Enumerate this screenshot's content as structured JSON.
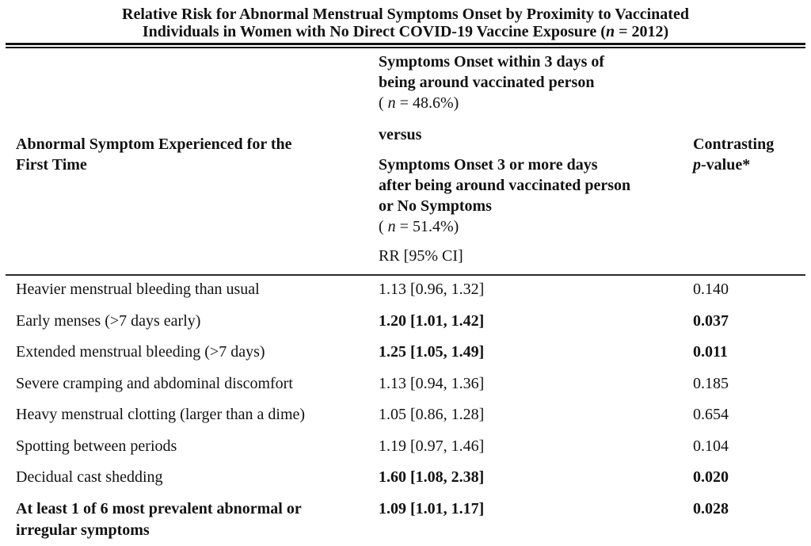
{
  "table": {
    "title": {
      "line1": "Relative Risk for Abnormal Menstrual Symptoms Onset by Proximity to Vaccinated",
      "line2_pre": "Individuals in Women with No Direct COVID-19 Vaccine Exposure (",
      "line2_var": "n",
      "line2_post": " = 2012)"
    },
    "header": {
      "symptom_col_lines": [
        "Abnormal Symptom Experienced for the",
        "First Time"
      ],
      "comparison_col": {
        "group1_lines": [
          "Symptoms Onset within 3 days of",
          "being around vaccinated person"
        ],
        "group1_n_pre": "( ",
        "group1_n_var": "n",
        "group1_n_post": " = 48.6%)",
        "versus": "versus",
        "group2_lines": [
          "Symptoms Onset 3 or more days",
          "after being around vaccinated person",
          "or No Symptoms"
        ],
        "group2_n_pre": "( ",
        "group2_n_var": "n",
        "group2_n_post": " = 51.4%)",
        "measure_label": "RR [95% CI]"
      },
      "pvalue_col": {
        "line1": "Contrasting",
        "p_var": "p",
        "p_post": "-value*"
      }
    },
    "rows": [
      {
        "symptom": "Heavier menstrual bleeding than usual",
        "rr": "1.13 [0.96, 1.32]",
        "p_value": "0.140",
        "values_bold": false,
        "symptom_bold": false
      },
      {
        "symptom": "Early menses (>7 days early)",
        "rr": "1.20 [1.01, 1.42]",
        "p_value": "0.037",
        "values_bold": true,
        "symptom_bold": false
      },
      {
        "symptom": "Extended menstrual bleeding (>7 days)",
        "rr": "1.25 [1.05, 1.49]",
        "p_value": "0.011",
        "values_bold": true,
        "symptom_bold": false
      },
      {
        "symptom": "Severe cramping and abdominal discomfort",
        "rr": "1.13 [0.94, 1.36]",
        "p_value": "0.185",
        "values_bold": false,
        "symptom_bold": false
      },
      {
        "symptom": "Heavy menstrual clotting (larger than a dime)",
        "rr": "1.05 [0.86, 1.28]",
        "p_value": "0.654",
        "values_bold": false,
        "symptom_bold": false
      },
      {
        "symptom": "Spotting between periods",
        "rr": "1.19 [0.97, 1.46]",
        "p_value": "0.104",
        "values_bold": false,
        "symptom_bold": false
      },
      {
        "symptom": "Decidual cast shedding",
        "rr": "1.60 [1.08, 2.38]",
        "p_value": "0.020",
        "values_bold": true,
        "symptom_bold": false
      },
      {
        "symptom": "At least 1 of 6 most prevalent abnormal or irregular symptoms",
        "rr": "1.09 [1.01, 1.17]",
        "p_value": "0.028",
        "values_bold": true,
        "symptom_bold": true
      }
    ]
  }
}
